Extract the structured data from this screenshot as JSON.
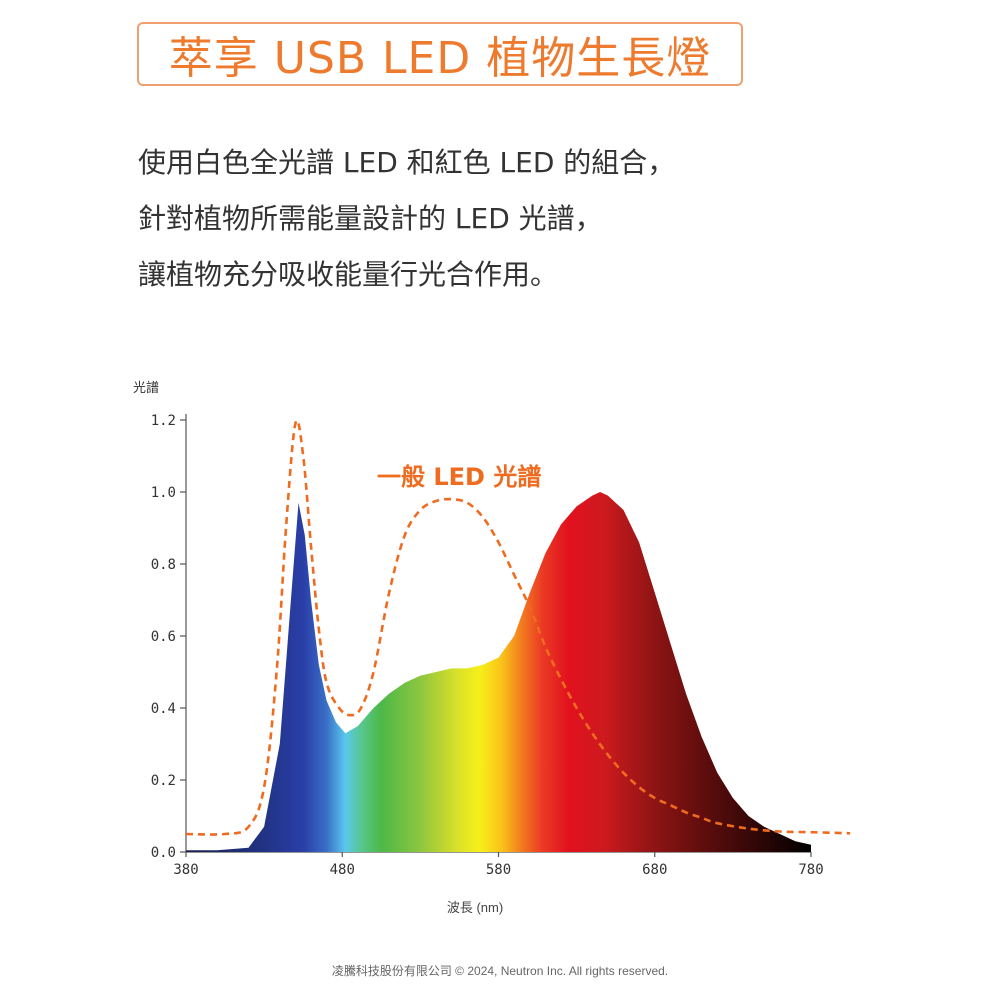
{
  "header": {
    "title": "萃享 USB LED 植物生長燈"
  },
  "description": {
    "lines": [
      "使用白色全光譜 LED 和紅色 LED 的組合，",
      "針對植物所需能量設計的 LED 光譜，",
      "讓植物充分吸收能量行光合作用。"
    ]
  },
  "chart_data": {
    "type": "area",
    "title": "",
    "ylabel": "光譜",
    "xlabel": "波長 (nm)",
    "xlim": [
      380,
      780
    ],
    "ylim": [
      0,
      1.2
    ],
    "x_ticks": [
      "380",
      "480",
      "580",
      "680",
      "780"
    ],
    "y_ticks": [
      "0.0",
      "0.2",
      "0.4",
      "0.6",
      "0.8",
      "1.0",
      "1.2"
    ],
    "grid": false,
    "annotations": [
      "一般 LED 光譜"
    ],
    "series": [
      {
        "style": "filled-spectrum",
        "points": [
          [
            380,
            0.005
          ],
          [
            400,
            0.005
          ],
          [
            420,
            0.012
          ],
          [
            430,
            0.07
          ],
          [
            440,
            0.3
          ],
          [
            448,
            0.75
          ],
          [
            452,
            0.97
          ],
          [
            456,
            0.88
          ],
          [
            460,
            0.7
          ],
          [
            465,
            0.52
          ],
          [
            470,
            0.42
          ],
          [
            476,
            0.36
          ],
          [
            482,
            0.33
          ],
          [
            490,
            0.35
          ],
          [
            500,
            0.4
          ],
          [
            510,
            0.44
          ],
          [
            520,
            0.47
          ],
          [
            530,
            0.49
          ],
          [
            540,
            0.5
          ],
          [
            550,
            0.51
          ],
          [
            560,
            0.51
          ],
          [
            570,
            0.52
          ],
          [
            580,
            0.54
          ],
          [
            590,
            0.6
          ],
          [
            600,
            0.72
          ],
          [
            610,
            0.83
          ],
          [
            620,
            0.91
          ],
          [
            630,
            0.96
          ],
          [
            640,
            0.99
          ],
          [
            645,
            1.0
          ],
          [
            650,
            0.99
          ],
          [
            660,
            0.95
          ],
          [
            670,
            0.86
          ],
          [
            680,
            0.72
          ],
          [
            690,
            0.58
          ],
          [
            700,
            0.44
          ],
          [
            710,
            0.32
          ],
          [
            720,
            0.22
          ],
          [
            730,
            0.15
          ],
          [
            740,
            0.1
          ],
          [
            750,
            0.07
          ],
          [
            760,
            0.05
          ],
          [
            770,
            0.03
          ],
          [
            780,
            0.02
          ]
        ]
      },
      {
        "name": "一般 LED 光譜",
        "style": "dashed",
        "color": "#ee6b1f",
        "points": [
          [
            380,
            0.05
          ],
          [
            405,
            0.05
          ],
          [
            420,
            0.07
          ],
          [
            430,
            0.18
          ],
          [
            438,
            0.5
          ],
          [
            444,
            0.9
          ],
          [
            450,
            1.19
          ],
          [
            455,
            1.1
          ],
          [
            460,
            0.85
          ],
          [
            465,
            0.62
          ],
          [
            470,
            0.47
          ],
          [
            478,
            0.4
          ],
          [
            485,
            0.38
          ],
          [
            492,
            0.4
          ],
          [
            500,
            0.5
          ],
          [
            510,
            0.72
          ],
          [
            520,
            0.88
          ],
          [
            530,
            0.95
          ],
          [
            540,
            0.975
          ],
          [
            550,
            0.98
          ],
          [
            560,
            0.97
          ],
          [
            570,
            0.93
          ],
          [
            580,
            0.86
          ],
          [
            590,
            0.77
          ],
          [
            600,
            0.68
          ],
          [
            610,
            0.57
          ],
          [
            620,
            0.48
          ],
          [
            630,
            0.4
          ],
          [
            640,
            0.33
          ],
          [
            650,
            0.27
          ],
          [
            660,
            0.22
          ],
          [
            670,
            0.18
          ],
          [
            680,
            0.15
          ],
          [
            690,
            0.13
          ],
          [
            700,
            0.11
          ],
          [
            710,
            0.095
          ],
          [
            720,
            0.08
          ],
          [
            740,
            0.065
          ],
          [
            760,
            0.057
          ],
          [
            780,
            0.055
          ],
          [
            805,
            0.052
          ]
        ]
      }
    ],
    "spectrum_colors": [
      [
        380,
        "#1a1f50"
      ],
      [
        430,
        "#223385"
      ],
      [
        455,
        "#2a3ea8"
      ],
      [
        470,
        "#3a6fc8"
      ],
      [
        482,
        "#5ac8ee"
      ],
      [
        492,
        "#58c78f"
      ],
      [
        505,
        "#4db848"
      ],
      [
        530,
        "#8dc63f"
      ],
      [
        553,
        "#d8e02a"
      ],
      [
        568,
        "#f7ef1a"
      ],
      [
        582,
        "#f9c31a"
      ],
      [
        595,
        "#f37a1f"
      ],
      [
        608,
        "#ea3a24"
      ],
      [
        625,
        "#e2111e"
      ],
      [
        648,
        "#cc1a1e"
      ],
      [
        680,
        "#8e1414"
      ],
      [
        715,
        "#5a0c0c"
      ],
      [
        750,
        "#2a0606"
      ],
      [
        780,
        "#000000"
      ]
    ],
    "axis_color": "#555555",
    "annotation_color": "#ee6b1f"
  },
  "footer": {
    "text": "凌騰科技股份有限公司 © 2024, Neutron Inc. All rights reserved."
  }
}
